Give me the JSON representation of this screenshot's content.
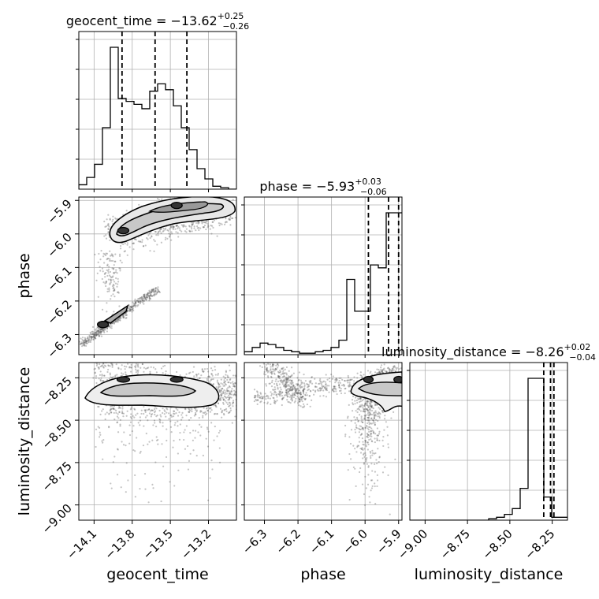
{
  "chart_data": {
    "type": "corner",
    "parameters": [
      "geocent_time",
      "phase",
      "luminosity_distance"
    ],
    "titles": [
      {
        "param": "geocent_time",
        "prefix": "geocent_time = ",
        "median": "−13.62",
        "plus": "+0.25",
        "minus": "−0.26"
      },
      {
        "param": "phase",
        "prefix": "phase = ",
        "median": "−5.93",
        "plus": "+0.03",
        "minus": "−0.06"
      },
      {
        "param": "luminosity_distance",
        "prefix": "luminosity_distance = ",
        "median": "−8.26",
        "plus": "+0.02",
        "minus": "−0.04"
      }
    ],
    "axis_labels": {
      "x": [
        "geocent_time",
        "phase",
        "luminosity_distance"
      ],
      "y": [
        "phase",
        "luminosity_distance"
      ]
    },
    "ranges": {
      "geocent_time": [
        -14.22,
        -12.98
      ],
      "phase": [
        -6.36,
        -5.89
      ],
      "luminosity_distance": [
        -9.09,
        -8.16
      ]
    },
    "ticks": {
      "geocent_time": [
        {
          "v": -14.1,
          "t": "−14.1"
        },
        {
          "v": -13.8,
          "t": "−13.8"
        },
        {
          "v": -13.5,
          "t": "−13.5"
        },
        {
          "v": -13.2,
          "t": "−13.2"
        }
      ],
      "phase": [
        {
          "v": -6.3,
          "t": "−6.3"
        },
        {
          "v": -6.2,
          "t": "−6.2"
        },
        {
          "v": -6.1,
          "t": "−6.1"
        },
        {
          "v": -6.0,
          "t": "−6.0"
        },
        {
          "v": -5.9,
          "t": "−5.9"
        }
      ],
      "luminosity_distance": [
        {
          "v": -9.0,
          "t": "−9.00"
        },
        {
          "v": -8.75,
          "t": "−8.75"
        },
        {
          "v": -8.5,
          "t": "−8.50"
        },
        {
          "v": -8.25,
          "t": "−8.25"
        }
      ]
    },
    "histograms": {
      "geocent_time": {
        "edges_start": -14.22,
        "bin_width": 0.062,
        "counts": [
          0.03,
          0.08,
          0.17,
          0.42,
          0.97,
          0.62,
          0.6,
          0.58,
          0.55,
          0.67,
          0.72,
          0.68,
          0.57,
          0.42,
          0.27,
          0.14,
          0.07,
          0.02,
          0.01,
          0
        ],
        "quantiles": [
          -13.88,
          -13.62,
          -13.37
        ]
      },
      "phase": {
        "edges_start": -6.36,
        "bin_width": 0.0235,
        "counts": [
          0.02,
          0.05,
          0.08,
          0.07,
          0.05,
          0.03,
          0.02,
          0.01,
          0.01,
          0.02,
          0.03,
          0.05,
          0.1,
          0.52,
          0.3,
          0.3,
          0.62,
          0.6,
          0.98,
          0.98
        ],
        "quantiles": [
          -5.99,
          -5.93,
          -5.9
        ]
      },
      "luminosity_distance": {
        "edges_start": -9.09,
        "bin_width": 0.0465,
        "counts": [
          0,
          0,
          0,
          0,
          0,
          0,
          0,
          0,
          0,
          0,
          0.01,
          0.02,
          0.04,
          0.08,
          0.22,
          0.98,
          0.98,
          0.16,
          0.02,
          0.02
        ],
        "quantiles": [
          -8.3,
          -8.26,
          -8.24
        ]
      }
    },
    "peak_markers": {
      "geocent_time-phase": [
        {
          "x": -13.87,
          "y": -5.99
        },
        {
          "x": -13.45,
          "y": -5.915
        },
        {
          "x": -14.03,
          "y": -6.27
        }
      ],
      "geocent_time-luminosity_distance": [
        {
          "x": -13.87,
          "y": -8.26
        },
        {
          "x": -13.45,
          "y": -8.26
        }
      ],
      "phase-luminosity_distance": [
        {
          "x": -5.99,
          "y": -8.26
        },
        {
          "x": -5.9,
          "y": -8.26
        }
      ]
    },
    "grid": true,
    "quantile_lines": "dashed"
  }
}
